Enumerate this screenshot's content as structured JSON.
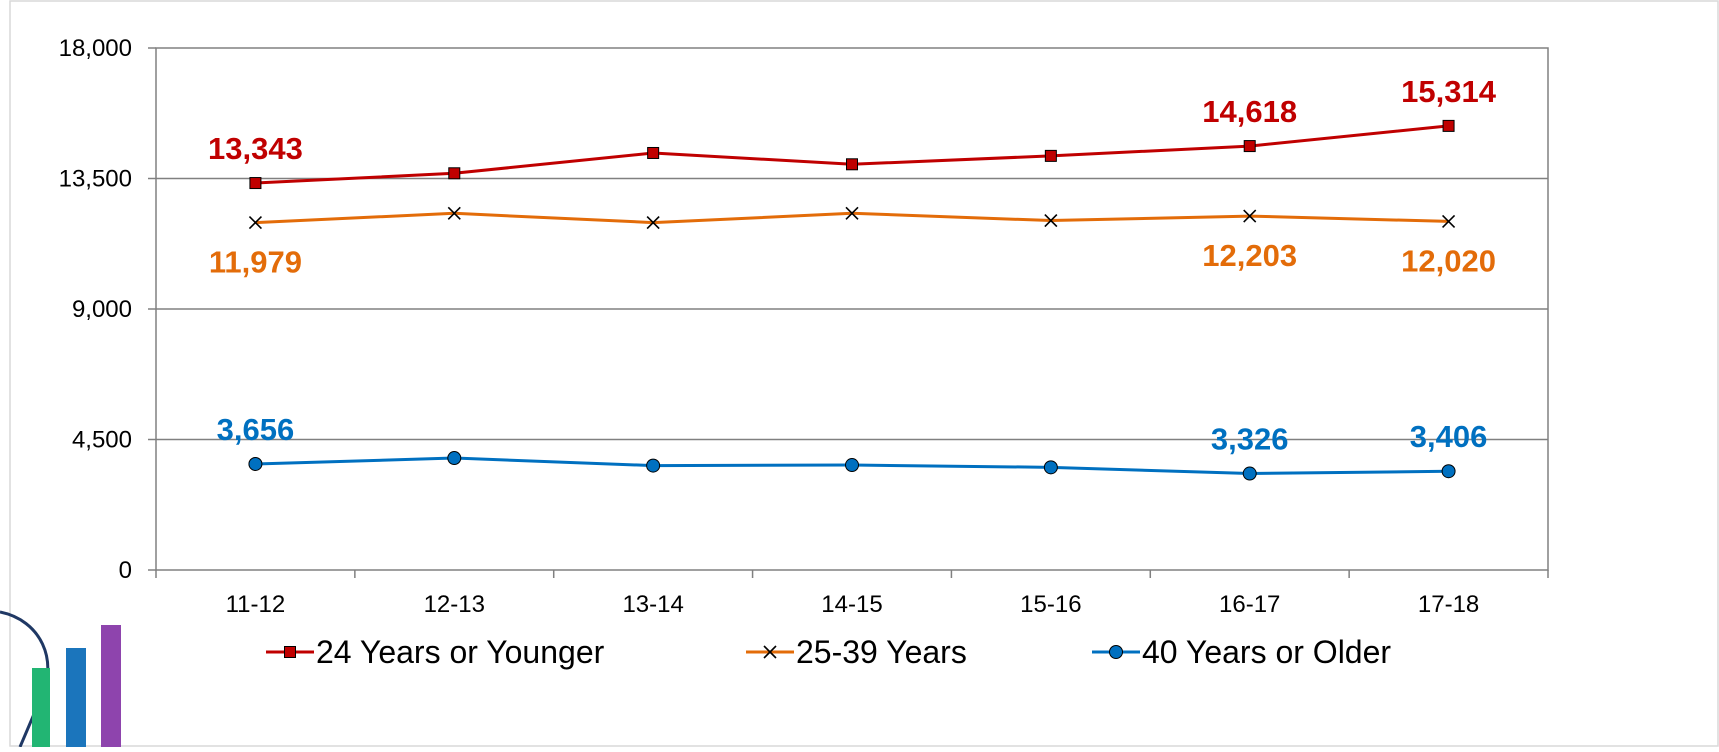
{
  "chart_data": {
    "type": "line",
    "categories": [
      "11-12",
      "12-13",
      "13-14",
      "14-15",
      "15-16",
      "16-17",
      "17-18"
    ],
    "ylim": [
      0,
      18000
    ],
    "yticks": [
      0,
      4500,
      9000,
      13500,
      18000
    ],
    "ytick_labels": [
      "0",
      "4,500",
      "9,000",
      "13,500",
      "18,000"
    ],
    "grid": true,
    "legend_position": "bottom",
    "series": [
      {
        "name": "24 Years or Younger",
        "color": "#c00000",
        "marker": "square",
        "values": [
          13343,
          13680,
          14380,
          13990,
          14280,
          14618,
          15314
        ],
        "labels": [
          {
            "index": 0,
            "text": "13,343",
            "pos": "above"
          },
          {
            "index": 5,
            "text": "14,618",
            "pos": "above"
          },
          {
            "index": 6,
            "text": "15,314",
            "pos": "above"
          }
        ]
      },
      {
        "name": "25-39 Years",
        "color": "#e36c09",
        "marker": "x",
        "values": [
          11979,
          12300,
          11979,
          12300,
          12050,
          12203,
          12020
        ],
        "labels": [
          {
            "index": 0,
            "text": "11,979",
            "pos": "below"
          },
          {
            "index": 5,
            "text": "12,203",
            "pos": "below"
          },
          {
            "index": 6,
            "text": "12,020",
            "pos": "below"
          }
        ]
      },
      {
        "name": "40 Years or Older",
        "color": "#0070c0",
        "marker": "circle",
        "values": [
          3656,
          3860,
          3600,
          3620,
          3540,
          3326,
          3406
        ],
        "labels": [
          {
            "index": 0,
            "text": "3,656",
            "pos": "above"
          },
          {
            "index": 5,
            "text": "3,326",
            "pos": "above"
          },
          {
            "index": 6,
            "text": "3,406",
            "pos": "above"
          }
        ]
      }
    ]
  },
  "logo": {
    "name": "bar-chart-logo-icon",
    "bar_colors": [
      "#22b573",
      "#1b75bc",
      "#8e44ad"
    ]
  }
}
